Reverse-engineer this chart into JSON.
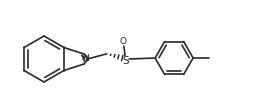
{
  "bg_color": "#ffffff",
  "line_color": "#2a2a2a",
  "lw": 1.2,
  "figsize": [
    2.7,
    1.11
  ],
  "dpi": 100,
  "xlim": [
    0,
    270
  ],
  "ylim": [
    0,
    111
  ]
}
